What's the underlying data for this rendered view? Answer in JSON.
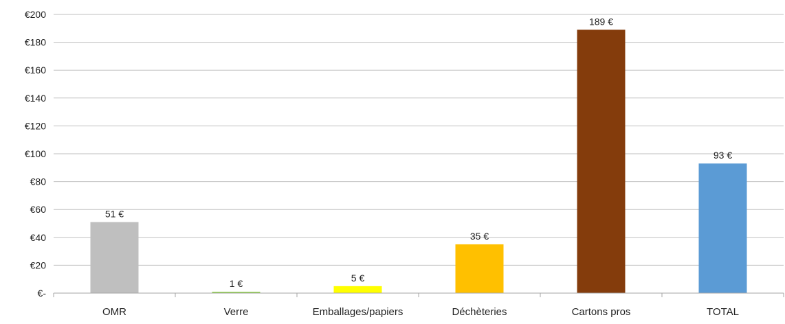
{
  "chart_data": {
    "type": "bar",
    "categories": [
      "OMR",
      "Verre",
      "Emballages/papiers",
      "Déchèteries",
      "Cartons pros",
      "TOTAL"
    ],
    "values": [
      51,
      1,
      5,
      35,
      189,
      93
    ],
    "data_labels": [
      "51 €",
      "1 €",
      "5 €",
      "35 €",
      "189 €",
      "93 €"
    ],
    "colors": [
      "#bfbfbf",
      "#92d050",
      "#ffff00",
      "#ffc000",
      "#843c0c",
      "#5b9bd5"
    ],
    "ylim": [
      0,
      200
    ],
    "yticks": [
      0,
      20,
      40,
      60,
      80,
      100,
      120,
      140,
      160,
      180,
      200
    ],
    "ytick_labels": [
      "€-",
      "€20",
      "€40",
      "€60",
      "€80",
      "€100",
      "€120",
      "€140",
      "€160",
      "€180",
      "€200"
    ],
    "grid": true,
    "gridline_color": "#bfbfbf",
    "axis_color": "#a6a6a6",
    "title": "",
    "xlabel": "",
    "ylabel": ""
  }
}
